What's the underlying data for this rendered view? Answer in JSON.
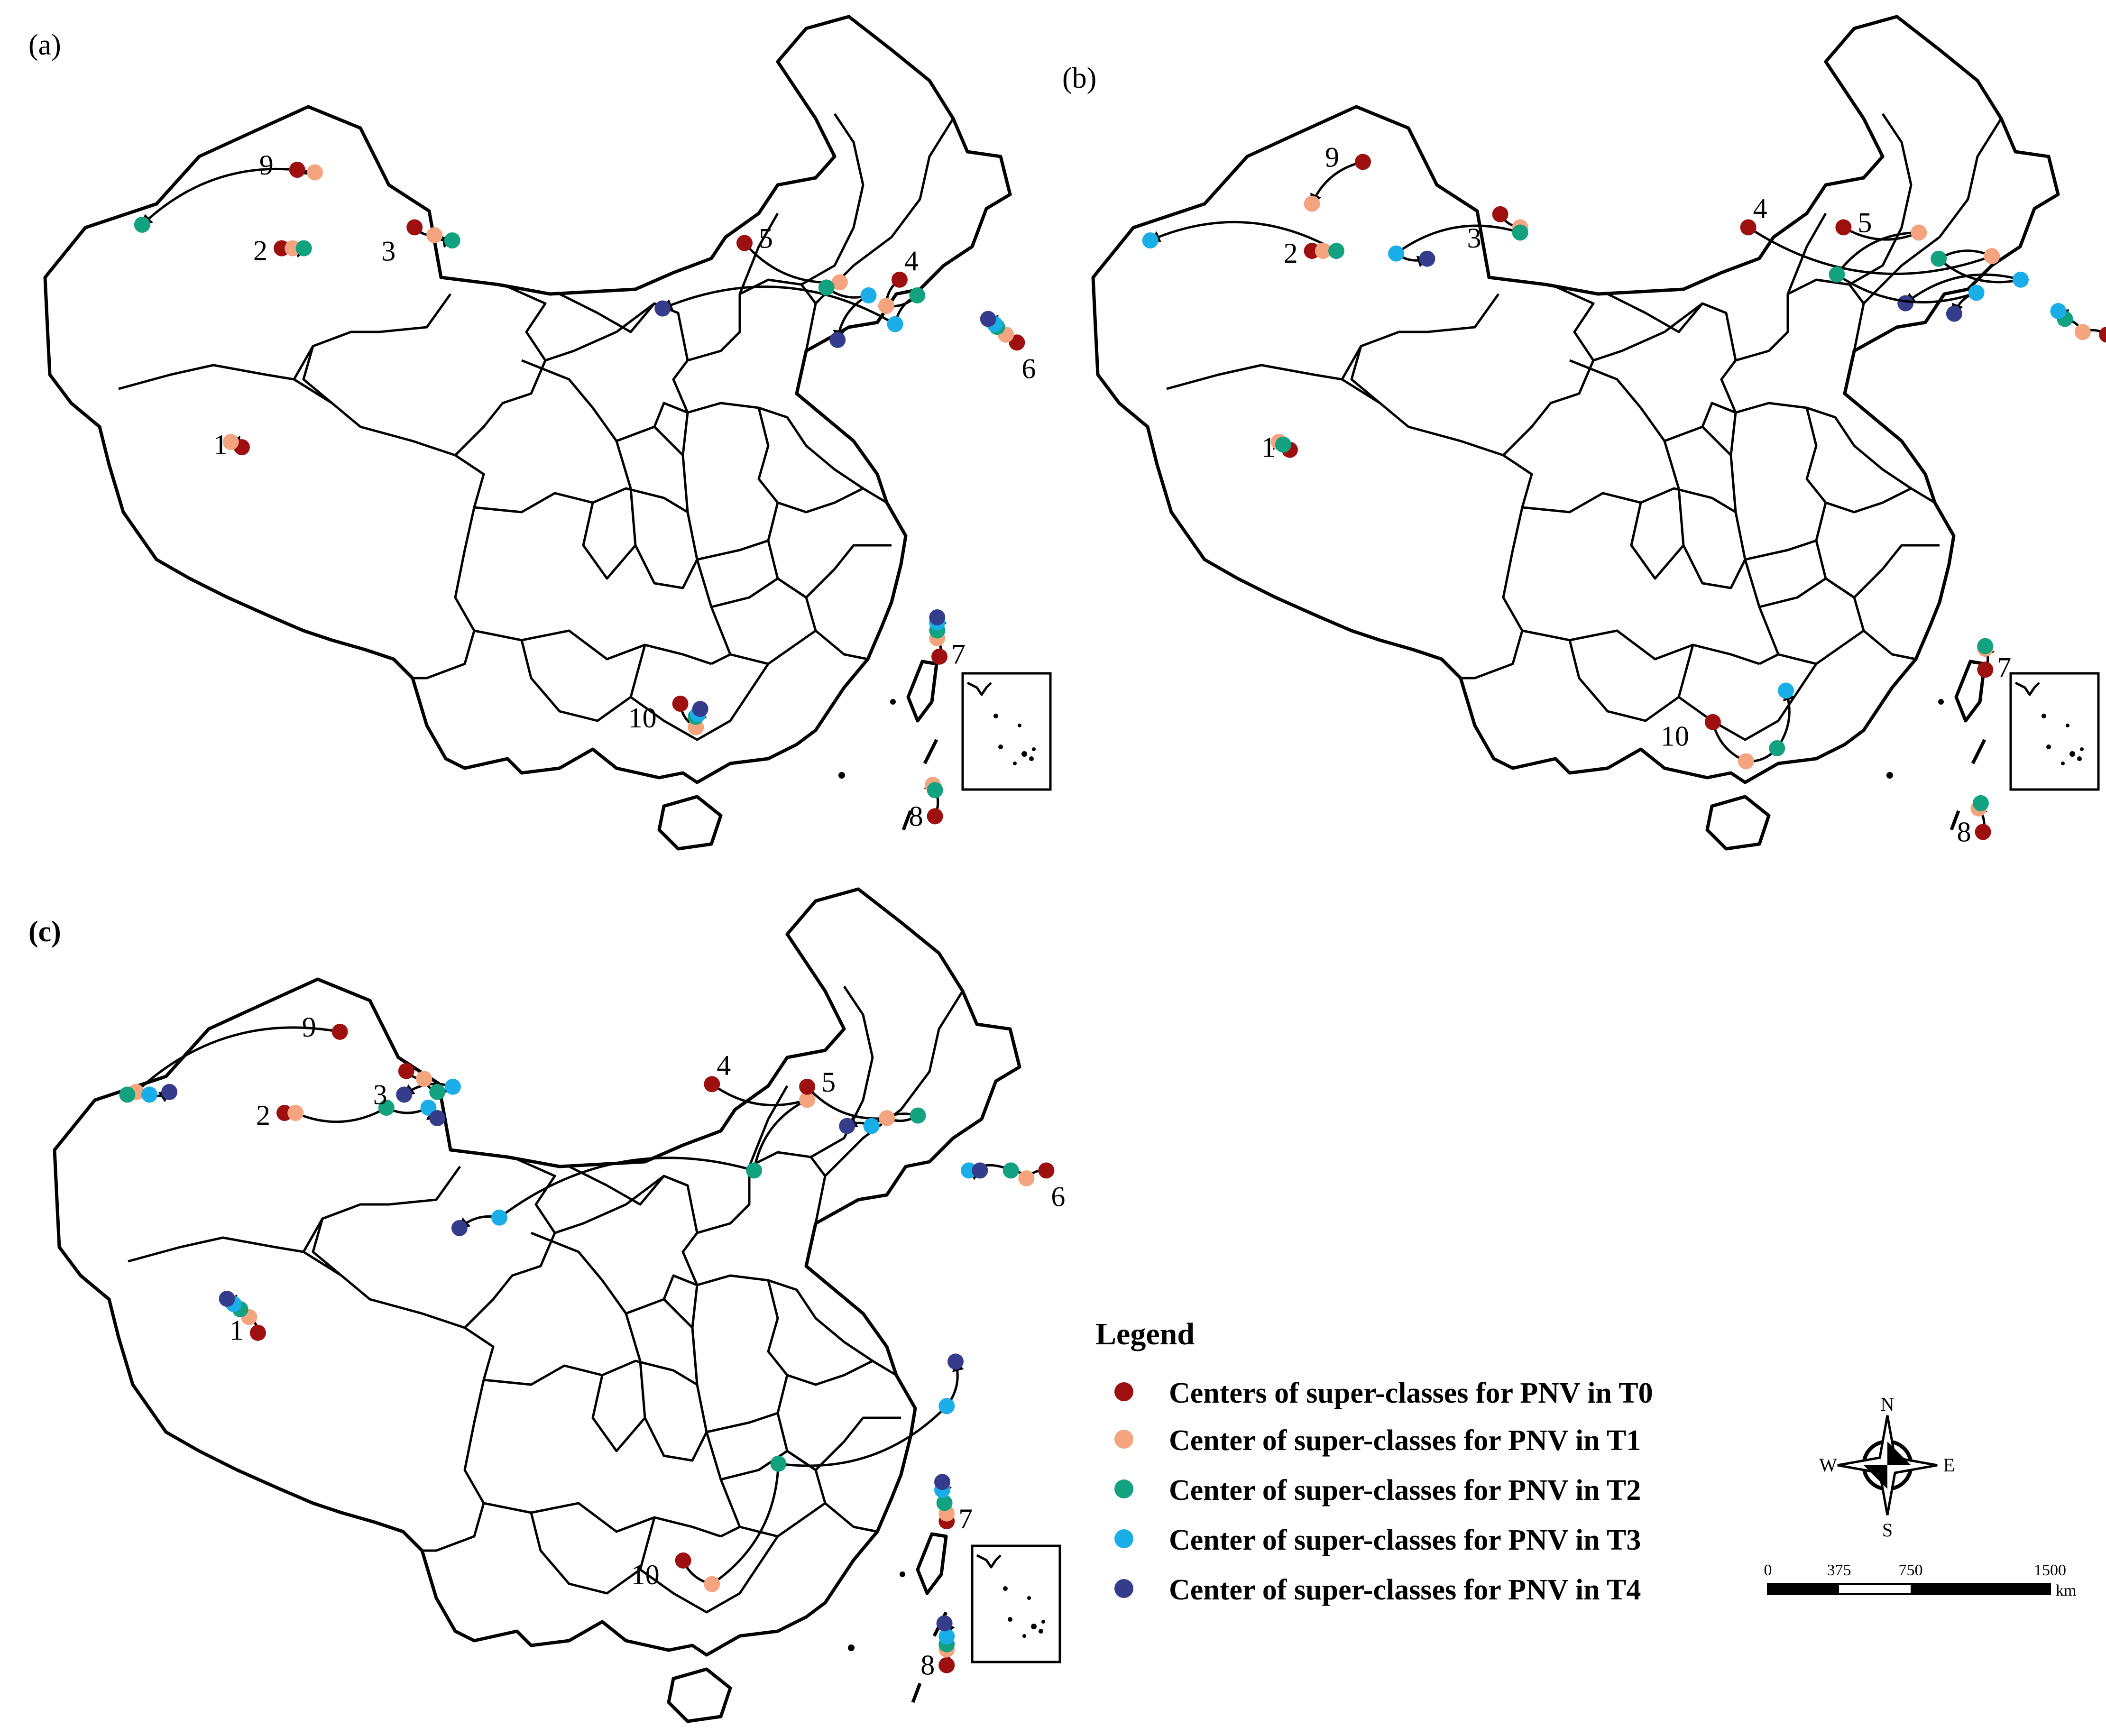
{
  "panels": [
    {
      "label": "(a)",
      "classes": [
        {
          "id": "1",
          "points": [
            {
              "period": "T0",
              "lon": 80.6,
              "lat": 35.6
            },
            {
              "period": "T1",
              "lon": 80.1,
              "lat": 35.8
            }
          ]
        },
        {
          "id": "2",
          "points": [
            {
              "period": "T0",
              "lon": 82.4,
              "lat": 43.2
            },
            {
              "period": "T1",
              "lon": 82.9,
              "lat": 43.2
            },
            {
              "period": "T2",
              "lon": 83.4,
              "lat": 43.2
            }
          ]
        },
        {
          "id": "3",
          "points": [
            {
              "period": "T0",
              "lon": 88.4,
              "lat": 44.0
            },
            {
              "period": "T1",
              "lon": 89.3,
              "lat": 43.7
            },
            {
              "period": "T2",
              "lon": 90.1,
              "lat": 43.5
            }
          ]
        },
        {
          "id": "4",
          "points": [
            {
              "period": "T0",
              "lon": 110.3,
              "lat": 42.0
            },
            {
              "period": "T1",
              "lon": 109.7,
              "lat": 41.0
            },
            {
              "period": "T2",
              "lon": 111.1,
              "lat": 41.4
            },
            {
              "period": "T3",
              "lon": 110.1,
              "lat": 40.3
            },
            {
              "period": "T4",
              "lon": 99.6,
              "lat": 40.9
            }
          ]
        },
        {
          "id": "5",
          "points": [
            {
              "period": "T0",
              "lon": 103.3,
              "lat": 43.4
            },
            {
              "period": "T1",
              "lon": 107.6,
              "lat": 41.9
            },
            {
              "period": "T2",
              "lon": 107.0,
              "lat": 41.7
            },
            {
              "period": "T3",
              "lon": 108.9,
              "lat": 41.4
            },
            {
              "period": "T4",
              "lon": 107.5,
              "lat": 39.7
            }
          ]
        },
        {
          "id": "6",
          "points": [
            {
              "period": "T0",
              "lon": 115.6,
              "lat": 39.6
            },
            {
              "period": "T1",
              "lon": 115.1,
              "lat": 39.9
            },
            {
              "period": "T2",
              "lon": 114.7,
              "lat": 40.2
            },
            {
              "period": "T3",
              "lon": 114.6,
              "lat": 40.3
            },
            {
              "period": "T4",
              "lon": 114.3,
              "lat": 40.5
            }
          ]
        },
        {
          "id": "7",
          "points": [
            {
              "period": "T0",
              "lon": 112.1,
              "lat": 27.6
            },
            {
              "period": "T1",
              "lon": 112.0,
              "lat": 28.3
            },
            {
              "period": "T2",
              "lon": 112.0,
              "lat": 28.6
            },
            {
              "period": "T3",
              "lon": 112.0,
              "lat": 28.9
            },
            {
              "period": "T4",
              "lon": 112.0,
              "lat": 29.1
            }
          ]
        },
        {
          "id": "8",
          "points": [
            {
              "period": "T0",
              "lon": 111.9,
              "lat": 21.5
            },
            {
              "period": "T1",
              "lon": 111.8,
              "lat": 22.7
            },
            {
              "period": "T2",
              "lon": 111.9,
              "lat": 22.5
            }
          ]
        },
        {
          "id": "9",
          "points": [
            {
              "period": "T0",
              "lon": 83.1,
              "lat": 46.2
            },
            {
              "period": "T1",
              "lon": 83.9,
              "lat": 46.1
            },
            {
              "period": "T2",
              "lon": 76.1,
              "lat": 44.1
            }
          ]
        },
        {
          "id": "10",
          "points": [
            {
              "period": "T0",
              "lon": 100.4,
              "lat": 25.8
            },
            {
              "period": "T1",
              "lon": 101.1,
              "lat": 24.9
            },
            {
              "period": "T2",
              "lon": 101.1,
              "lat": 25.3
            },
            {
              "period": "T3",
              "lon": 101.2,
              "lat": 25.4
            },
            {
              "period": "T4",
              "lon": 101.3,
              "lat": 25.6
            }
          ]
        }
      ]
    },
    {
      "label": "(b)",
      "classes": [
        {
          "id": "1",
          "points": [
            {
              "period": "T0",
              "lon": 80.6,
              "lat": 35.5
            },
            {
              "period": "T1",
              "lon": 80.1,
              "lat": 35.8
            },
            {
              "period": "T2",
              "lon": 80.3,
              "lat": 35.7
            }
          ]
        },
        {
          "id": "2",
          "points": [
            {
              "period": "T0",
              "lon": 81.6,
              "lat": 43.1
            },
            {
              "period": "T1",
              "lon": 82.1,
              "lat": 43.1
            },
            {
              "period": "T2",
              "lon": 82.7,
              "lat": 43.1
            },
            {
              "period": "T3",
              "lon": 74.3,
              "lat": 43.5
            }
          ]
        },
        {
          "id": "3",
          "points": [
            {
              "period": "T0",
              "lon": 90.1,
              "lat": 44.5
            },
            {
              "period": "T1",
              "lon": 91.0,
              "lat": 44.0
            },
            {
              "period": "T2",
              "lon": 91.0,
              "lat": 43.8
            },
            {
              "period": "T3",
              "lon": 85.4,
              "lat": 43.0
            },
            {
              "period": "T4",
              "lon": 86.8,
              "lat": 42.8
            }
          ]
        },
        {
          "id": "4",
          "points": [
            {
              "period": "T0",
              "lon": 101.3,
              "lat": 44.0
            },
            {
              "period": "T1",
              "lon": 112.3,
              "lat": 42.9
            },
            {
              "period": "T2",
              "lon": 109.9,
              "lat": 42.8
            },
            {
              "period": "T3",
              "lon": 113.6,
              "lat": 42.0
            },
            {
              "period": "T4",
              "lon": 108.4,
              "lat": 41.1
            }
          ]
        },
        {
          "id": "5",
          "points": [
            {
              "period": "T0",
              "lon": 105.6,
              "lat": 44.0
            },
            {
              "period": "T1",
              "lon": 109.0,
              "lat": 43.8
            },
            {
              "period": "T2",
              "lon": 105.3,
              "lat": 42.2
            },
            {
              "period": "T3",
              "lon": 111.6,
              "lat": 41.5
            },
            {
              "period": "T4",
              "lon": 110.6,
              "lat": 40.7
            }
          ]
        },
        {
          "id": "6",
          "points": [
            {
              "period": "T0",
              "lon": 117.5,
              "lat": 39.9
            },
            {
              "period": "T1",
              "lon": 116.4,
              "lat": 40.0
            },
            {
              "period": "T2",
              "lon": 115.6,
              "lat": 40.5
            },
            {
              "period": "T3",
              "lon": 115.3,
              "lat": 40.8
            }
          ]
        },
        {
          "id": "7",
          "points": [
            {
              "period": "T0",
              "lon": 112.0,
              "lat": 27.1
            },
            {
              "period": "T1",
              "lon": 112.0,
              "lat": 27.9
            },
            {
              "period": "T2",
              "lon": 112.0,
              "lat": 28.0
            }
          ]
        },
        {
          "id": "8",
          "points": [
            {
              "period": "T0",
              "lon": 111.9,
              "lat": 20.9
            },
            {
              "period": "T1",
              "lon": 111.7,
              "lat": 21.8
            },
            {
              "period": "T2",
              "lon": 111.8,
              "lat": 22.0
            }
          ]
        },
        {
          "id": "9",
          "points": [
            {
              "period": "T0",
              "lon": 83.9,
              "lat": 46.5
            },
            {
              "period": "T1",
              "lon": 81.6,
              "lat": 44.9
            }
          ]
        },
        {
          "id": "10",
          "points": [
            {
              "period": "T0",
              "lon": 99.7,
              "lat": 25.1
            },
            {
              "period": "T1",
              "lon": 101.2,
              "lat": 23.6
            },
            {
              "period": "T2",
              "lon": 102.6,
              "lat": 24.1
            },
            {
              "period": "T3",
              "lon": 103.0,
              "lat": 26.3
            }
          ]
        }
      ]
    },
    {
      "label": "(c)",
      "classes": [
        {
          "id": "1",
          "points": [
            {
              "period": "T0",
              "lon": 80.9,
              "lat": 35.1
            },
            {
              "period": "T1",
              "lon": 80.5,
              "lat": 35.7
            },
            {
              "period": "T2",
              "lon": 80.1,
              "lat": 36.0
            },
            {
              "period": "T3",
              "lon": 79.8,
              "lat": 36.2
            },
            {
              "period": "T4",
              "lon": 79.5,
              "lat": 36.4
            }
          ]
        },
        {
          "id": "2",
          "points": [
            {
              "period": "T0",
              "lon": 82.1,
              "lat": 43.5
            },
            {
              "period": "T1",
              "lon": 82.6,
              "lat": 43.5
            },
            {
              "period": "T2",
              "lon": 86.7,
              "lat": 43.7
            },
            {
              "period": "T3",
              "lon": 88.6,
              "lat": 43.7
            },
            {
              "period": "T4",
              "lon": 89.0,
              "lat": 43.3
            }
          ]
        },
        {
          "id": "3",
          "points": [
            {
              "period": "T0",
              "lon": 87.6,
              "lat": 45.1
            },
            {
              "period": "T1",
              "lon": 88.4,
              "lat": 44.8
            },
            {
              "period": "T2",
              "lon": 89.0,
              "lat": 44.3
            },
            {
              "period": "T3",
              "lon": 89.7,
              "lat": 44.5
            },
            {
              "period": "T4",
              "lon": 87.5,
              "lat": 44.2
            }
          ]
        },
        {
          "id": "4",
          "points": [
            {
              "period": "T0",
              "lon": 101.4,
              "lat": 44.6
            },
            {
              "period": "T1",
              "lon": 105.7,
              "lat": 44.0
            },
            {
              "period": "T2",
              "lon": 103.3,
              "lat": 41.3
            },
            {
              "period": "T3",
              "lon": 91.8,
              "lat": 39.5
            },
            {
              "period": "T4",
              "lon": 90.0,
              "lat": 39.1
            }
          ]
        },
        {
          "id": "5",
          "points": [
            {
              "period": "T0",
              "lon": 105.7,
              "lat": 44.5
            },
            {
              "period": "T1",
              "lon": 109.3,
              "lat": 43.3
            },
            {
              "period": "T2",
              "lon": 110.7,
              "lat": 43.4
            },
            {
              "period": "T3",
              "lon": 108.6,
              "lat": 43.0
            },
            {
              "period": "T4",
              "lon": 107.5,
              "lat": 43.0
            }
          ]
        },
        {
          "id": "6",
          "points": [
            {
              "period": "T0",
              "lon": 116.5,
              "lat": 41.3
            },
            {
              "period": "T1",
              "lon": 115.6,
              "lat": 41.0
            },
            {
              "period": "T2",
              "lon": 114.9,
              "lat": 41.3
            },
            {
              "period": "T3",
              "lon": 113.0,
              "lat": 41.3
            },
            {
              "period": "T4",
              "lon": 113.5,
              "lat": 41.3
            }
          ]
        },
        {
          "id": "7",
          "points": [
            {
              "period": "T0",
              "lon": 112.0,
              "lat": 27.9
            },
            {
              "period": "T1",
              "lon": 112.0,
              "lat": 28.2
            },
            {
              "period": "T2",
              "lon": 111.9,
              "lat": 28.6
            },
            {
              "period": "T3",
              "lon": 111.8,
              "lat": 29.1
            },
            {
              "period": "T4",
              "lon": 111.8,
              "lat": 29.4
            }
          ]
        },
        {
          "id": "8",
          "points": [
            {
              "period": "T0",
              "lon": 112.0,
              "lat": 22.4
            },
            {
              "period": "T1",
              "lon": 112.0,
              "lat": 23.0
            },
            {
              "period": "T2",
              "lon": 112.0,
              "lat": 23.2
            },
            {
              "period": "T3",
              "lon": 112.0,
              "lat": 23.5
            },
            {
              "period": "T4",
              "lon": 111.9,
              "lat": 24.0
            }
          ]
        },
        {
          "id": "9",
          "points": [
            {
              "period": "T0",
              "lon": 84.6,
              "lat": 46.6
            },
            {
              "period": "T1",
              "lon": 75.4,
              "lat": 44.3
            },
            {
              "period": "T2",
              "lon": 75.0,
              "lat": 44.2
            },
            {
              "period": "T3",
              "lon": 76.0,
              "lat": 44.2
            },
            {
              "period": "T4",
              "lon": 76.9,
              "lat": 44.3
            }
          ]
        },
        {
          "id": "10",
          "points": [
            {
              "period": "T0",
              "lon": 100.1,
              "lat": 26.4
            },
            {
              "period": "T1",
              "lon": 101.4,
              "lat": 25.5
            },
            {
              "period": "T2",
              "lon": 104.4,
              "lat": 30.1
            },
            {
              "period": "T3",
              "lon": 112.0,
              "lat": 32.3
            },
            {
              "period": "T4",
              "lon": 112.4,
              "lat": 34.0
            }
          ]
        }
      ]
    }
  ],
  "legend": {
    "title": "Legend",
    "items": [
      {
        "period": "T0",
        "label": "Centers of super-classes for PNV in T0",
        "color": "#9e1010"
      },
      {
        "period": "T1",
        "label": "Center of super-classes for PNV in T1",
        "color": "#f4a57f"
      },
      {
        "period": "T2",
        "label": "Center of super-classes for PNV in T2",
        "color": "#12a27f"
      },
      {
        "period": "T3",
        "label": "Center of super-classes for PNV in T3",
        "color": "#19aee8"
      },
      {
        "period": "T4",
        "label": "Center of super-classes for PNV in T4",
        "color": "#343c8b"
      }
    ]
  },
  "scale_bar": {
    "ticks": [
      "0",
      "375",
      "750",
      "1500"
    ],
    "unit": "km"
  },
  "compass": {
    "north": "N",
    "south": "S",
    "east": "E",
    "west": "W"
  }
}
